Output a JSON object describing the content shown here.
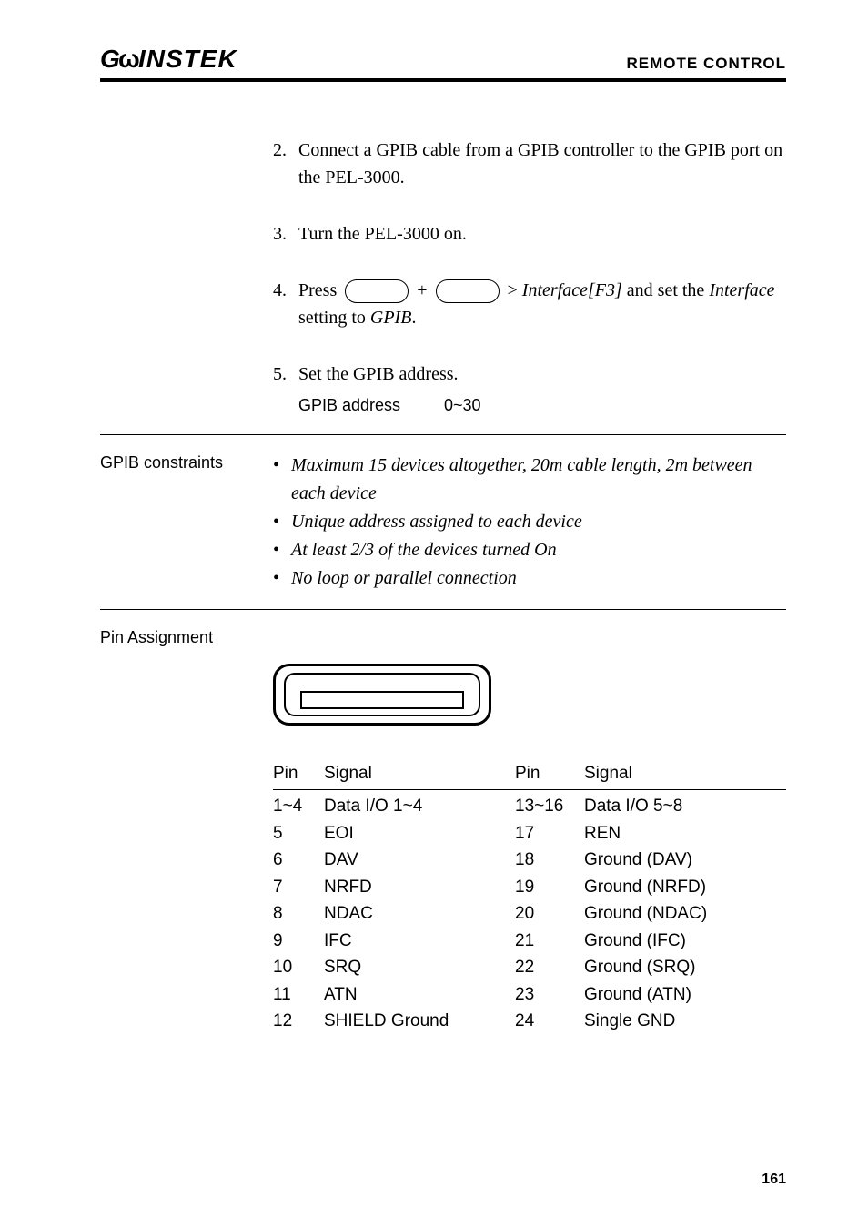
{
  "header": {
    "logo_gu": "G",
    "logo_u": "U",
    "logo_rest": "INSTEK",
    "section": "REMOTE CONTROL"
  },
  "steps": {
    "s2": {
      "num": "2.",
      "text_a": "Connect a GPIB cable from a GPIB controller to the GPIB port on the PEL-3000."
    },
    "s3": {
      "num": "3.",
      "text_a": "Turn the PEL-3000 on."
    },
    "s4": {
      "num": "4.",
      "press": "Press",
      "plus": "+",
      "gt": ">",
      "interface_f3": "Interface[F3]",
      "and_set": " and set the ",
      "interface_word": "Interface",
      "setting_to": " setting to ",
      "gpib": "GPIB",
      "period": "."
    },
    "s5": {
      "num": "5.",
      "text": "Set the GPIB address.",
      "addr_label": "GPIB address",
      "addr_range": "0~30"
    }
  },
  "constraints": {
    "label": "GPIB constraints",
    "items": [
      "Maximum 15 devices altogether, 20m cable length, 2m between each device",
      "Unique address assigned to each device",
      "At least 2/3 of the devices turned On",
      "No loop or parallel connection"
    ]
  },
  "pin_assignment": {
    "label": "Pin Assignment",
    "headers": {
      "pin": "Pin",
      "signal": "Signal"
    },
    "rows": [
      {
        "p1": "1~4",
        "s1": "Data I/O 1~4",
        "p2": "13~16",
        "s2": "Data I/O 5~8"
      },
      {
        "p1": "5",
        "s1": "EOI",
        "p2": "17",
        "s2": "REN"
      },
      {
        "p1": "6",
        "s1": "DAV",
        "p2": "18",
        "s2": "Ground (DAV)"
      },
      {
        "p1": "7",
        "s1": "NRFD",
        "p2": "19",
        "s2": "Ground (NRFD)"
      },
      {
        "p1": "8",
        "s1": "NDAC",
        "p2": "20",
        "s2": "Ground (NDAC)"
      },
      {
        "p1": "9",
        "s1": "IFC",
        "p2": "21",
        "s2": "Ground (IFC)"
      },
      {
        "p1": "10",
        "s1": "SRQ",
        "p2": "22",
        "s2": "Ground (SRQ)"
      },
      {
        "p1": "11",
        "s1": "ATN",
        "p2": "23",
        "s2": "Ground (ATN)"
      },
      {
        "p1": "12",
        "s1": "SHIELD Ground",
        "p2": "24",
        "s2": "Single GND"
      }
    ]
  },
  "page_number": "161"
}
